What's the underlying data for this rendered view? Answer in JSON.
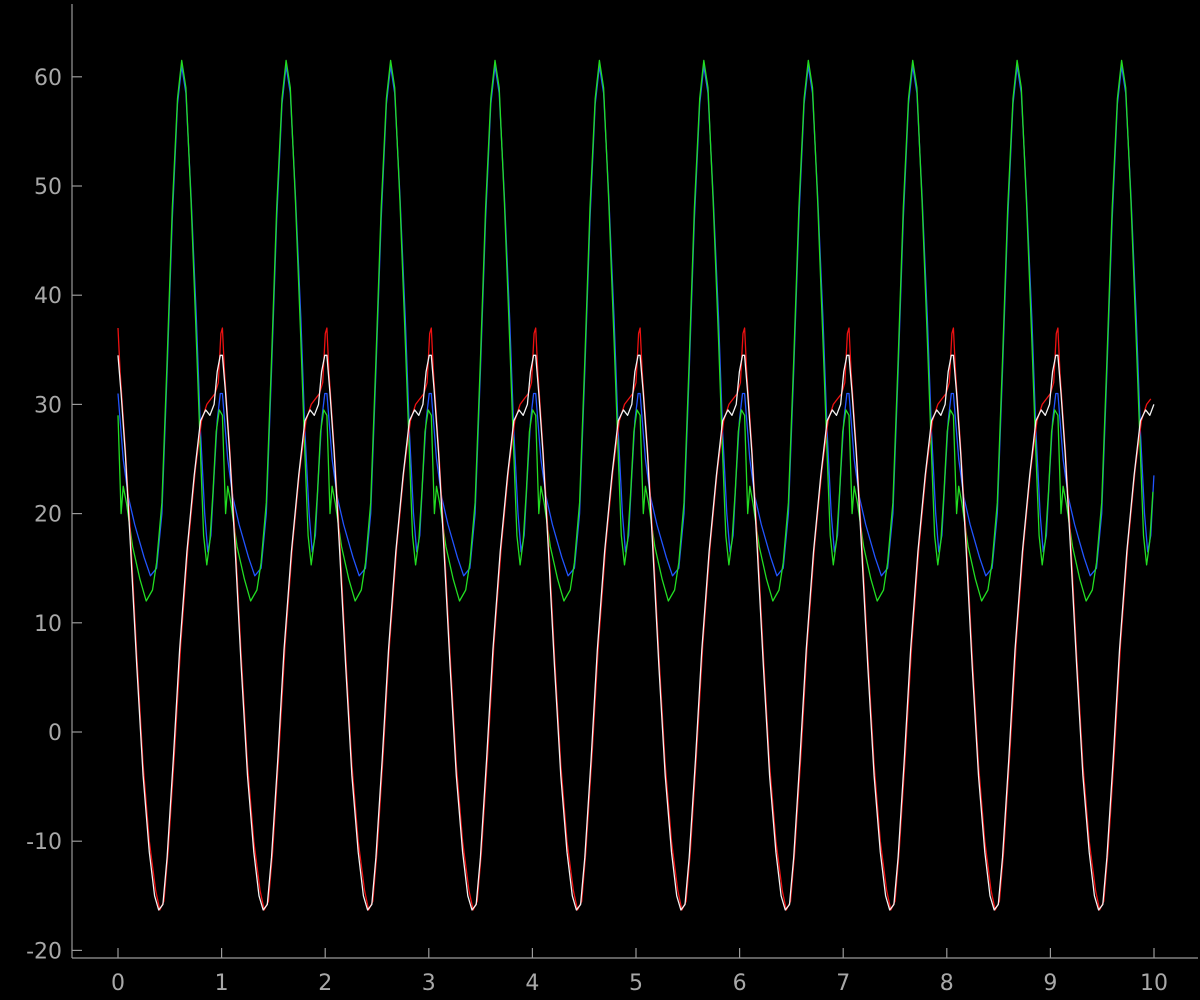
{
  "chart_data": {
    "type": "line",
    "title": "",
    "xlabel": "",
    "ylabel": "",
    "xlim": [
      -0.45,
      10.45
    ],
    "ylim": [
      -20.5,
      67
    ],
    "grid": false,
    "legend": "none",
    "x_ticks": [
      0,
      1,
      2,
      3,
      4,
      5,
      6,
      7,
      8,
      9,
      10
    ],
    "y_ticks": [
      -20,
      -10,
      0,
      10,
      20,
      30,
      40,
      50,
      60
    ],
    "axis_color": "#9a9a9a",
    "background": "#000000",
    "period": 1.008,
    "series": [
      {
        "color": "#2255ff",
        "values": [
          [
            0.0,
            31.0
          ],
          [
            0.05,
            25.0
          ],
          [
            0.1,
            21.5
          ],
          [
            0.16,
            19.0
          ],
          [
            0.25,
            16.0
          ],
          [
            0.31,
            14.3
          ],
          [
            0.37,
            15.0
          ],
          [
            0.42,
            20.0
          ],
          [
            0.47,
            33.0
          ],
          [
            0.52,
            47.0
          ],
          [
            0.57,
            57.5
          ],
          [
            0.61,
            61.0
          ],
          [
            0.65,
            58.5
          ],
          [
            0.7,
            49.0
          ],
          [
            0.75,
            38.0
          ],
          [
            0.79,
            27.5
          ],
          [
            0.83,
            20.0
          ],
          [
            0.86,
            16.5
          ],
          [
            0.89,
            18.0
          ],
          [
            0.92,
            23.5
          ],
          [
            0.95,
            28.5
          ],
          [
            0.98,
            31.0
          ],
          [
            1.0,
            31.0
          ]
        ]
      },
      {
        "color": "#22dd22",
        "values": [
          [
            0.0,
            29.0
          ],
          [
            0.03,
            20.0
          ],
          [
            0.05,
            22.5
          ],
          [
            0.08,
            21.0
          ],
          [
            0.14,
            17.0
          ],
          [
            0.21,
            14.0
          ],
          [
            0.27,
            12.0
          ],
          [
            0.33,
            13.0
          ],
          [
            0.37,
            15.5
          ],
          [
            0.42,
            21.0
          ],
          [
            0.47,
            34.0
          ],
          [
            0.52,
            48.0
          ],
          [
            0.57,
            58.0
          ],
          [
            0.61,
            61.5
          ],
          [
            0.65,
            59.0
          ],
          [
            0.7,
            48.5
          ],
          [
            0.75,
            36.0
          ],
          [
            0.79,
            25.5
          ],
          [
            0.82,
            18.0
          ],
          [
            0.85,
            15.3
          ],
          [
            0.88,
            17.5
          ],
          [
            0.91,
            22.0
          ],
          [
            0.94,
            27.5
          ],
          [
            0.97,
            29.5
          ],
          [
            1.0,
            29.0
          ]
        ]
      },
      {
        "color": "#ee1111",
        "values": [
          [
            0.0,
            37.0
          ],
          [
            0.02,
            33.0
          ],
          [
            0.07,
            26.0
          ],
          [
            0.12,
            18.0
          ],
          [
            0.18,
            7.0
          ],
          [
            0.24,
            -3.0
          ],
          [
            0.3,
            -10.0
          ],
          [
            0.36,
            -14.5
          ],
          [
            0.4,
            -16.3
          ],
          [
            0.44,
            -15.5
          ],
          [
            0.48,
            -11.0
          ],
          [
            0.54,
            -2.0
          ],
          [
            0.6,
            8.0
          ],
          [
            0.67,
            17.0
          ],
          [
            0.74,
            24.0
          ],
          [
            0.8,
            28.5
          ],
          [
            0.85,
            30.0
          ],
          [
            0.89,
            30.5
          ],
          [
            0.93,
            31.0
          ],
          [
            0.96,
            32.0
          ],
          [
            0.985,
            36.5
          ],
          [
            1.0,
            37.0
          ]
        ]
      },
      {
        "color": "#f2f2f2",
        "values": [
          [
            0.0,
            34.5
          ],
          [
            0.03,
            31.0
          ],
          [
            0.07,
            25.5
          ],
          [
            0.12,
            17.0
          ],
          [
            0.18,
            6.0
          ],
          [
            0.24,
            -4.0
          ],
          [
            0.3,
            -11.0
          ],
          [
            0.35,
            -15.0
          ],
          [
            0.39,
            -16.3
          ],
          [
            0.43,
            -15.8
          ],
          [
            0.47,
            -11.5
          ],
          [
            0.53,
            -2.5
          ],
          [
            0.59,
            7.5
          ],
          [
            0.66,
            16.5
          ],
          [
            0.73,
            23.5
          ],
          [
            0.79,
            28.5
          ],
          [
            0.84,
            29.5
          ],
          [
            0.88,
            29.0
          ],
          [
            0.92,
            30.0
          ],
          [
            0.95,
            33.0
          ],
          [
            0.98,
            34.5
          ],
          [
            1.0,
            34.5
          ]
        ]
      }
    ]
  }
}
